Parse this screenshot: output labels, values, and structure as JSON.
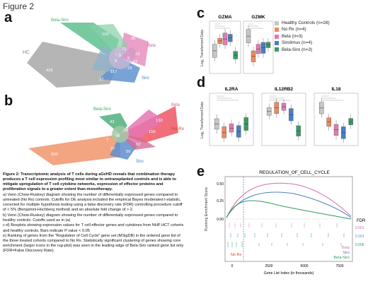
{
  "figure_title": "Figure 2",
  "panels": {
    "a": {
      "label": "a",
      "set_labels": [
        {
          "name": "Bela-Siro",
          "color": "#3fa66e"
        },
        {
          "name": "Bela",
          "color": "#d0609a"
        },
        {
          "name": "HC",
          "color": "#888888"
        },
        {
          "name": "Siro",
          "color": "#4a7fc1"
        }
      ],
      "counts": [
        "100",
        "36",
        "268",
        "71",
        "23",
        "5",
        "62",
        "425",
        "117",
        "37",
        "9",
        "29",
        "5"
      ]
    },
    "b": {
      "label": "b",
      "set_labels": [
        {
          "name": "Bela",
          "color": "#d0609a"
        },
        {
          "name": "Bela-Siro",
          "color": "#3fa66e"
        },
        {
          "name": "No Rx",
          "color": "#e0392d"
        },
        {
          "name": "Siro",
          "color": "#4a7fc1"
        }
      ],
      "counts": [
        "132",
        "43",
        "60",
        "156",
        "58",
        "550",
        "48",
        "7",
        "37",
        "56",
        "62"
      ]
    },
    "c": {
      "label": "c",
      "ylabel": "Log₂ Transformed Data",
      "plots": [
        {
          "title": "GZMA"
        },
        {
          "title": "GZMK"
        }
      ]
    },
    "d": {
      "label": "d",
      "ylabel": "Log₂ Transformed Data",
      "plots": [
        {
          "title": "IL2RA"
        },
        {
          "title": "IL12RB2"
        },
        {
          "title": "IL18"
        }
      ]
    },
    "e": {
      "label": "e",
      "title": "REGULATION_OF_CELL_CYCLE",
      "ylabel": "Running Enrichment Score",
      "xlabel": "Gene List Index (in thousands)",
      "xticks": [
        "0",
        "2500",
        "5000",
        "7500"
      ],
      "yticks": [
        "0.00",
        "0.25",
        "0.50"
      ],
      "fdr_header": "FDR",
      "fdr_values": [
        "0.001",
        "0.161",
        "0.006"
      ],
      "annotations": {
        "norx": "No Rx",
        "bela": "Bela",
        "siro": "Siro",
        "belasiro": "Bela-Siro"
      }
    }
  },
  "legend": [
    {
      "label": "Healthy Controls (n=28)",
      "color": "#c7c7c7"
    },
    {
      "label": "No Rx (n=4)",
      "color": "#f08a5d"
    },
    {
      "label": "Bela (n=3)",
      "color": "#e27bb4"
    },
    {
      "label": "Sirolimus (n=4)",
      "color": "#4b7fc2"
    },
    {
      "label": "Bela-Siro (n=3)",
      "color": "#3a9b64"
    }
  ],
  "caption": {
    "heading": "Figure 2: Transcriptomic analysis of T cells during aGvHD reveals that combination therapy produces a T cell expression profiling most similar to untransplanted controls and is able to mitigate upregulation of T cell cytokine networks, expression of effector proteins and proliferation signals to a greater extent than monotherapy.",
    "a": "a) Venn (Chow-Ruskey) diagram showing the number of differentially expressed genes compared to untreated (No Rx) controls. Cutoffs for DE analysis included the empirical Bayes moderated t-statistic, corrected for multiple hypothesis testing using a false discovery rate (FDR) controlling procedure cutoff of < 5% (Benjamini-Hochberg method) and an absolute fold change of > 2.",
    "b": "b) Venn (Chow-Ruskey) diagram showing the number of differentially expressed genes compared to healthy controls. Cutoffs used as in (a)",
    "cd": "c-d) Boxplots showing expression values for T cell effector genes and cytokines from NHP HCT cohorts and healthy controls. Bars indicate P value < 0.05",
    "e": "e) Ranking of genes from the \"Regulation of Cell Cycle\" gene set (MSigDB) in the ordered gene list of the three treated cohorts compared to No Rx. Statistically significant clustering of genes showing core enrichment (larger icons in the rug-plot) was seen in the leading edge of Bela-Siro ranked gene list only (FDR=False Discovery Rate)."
  }
}
